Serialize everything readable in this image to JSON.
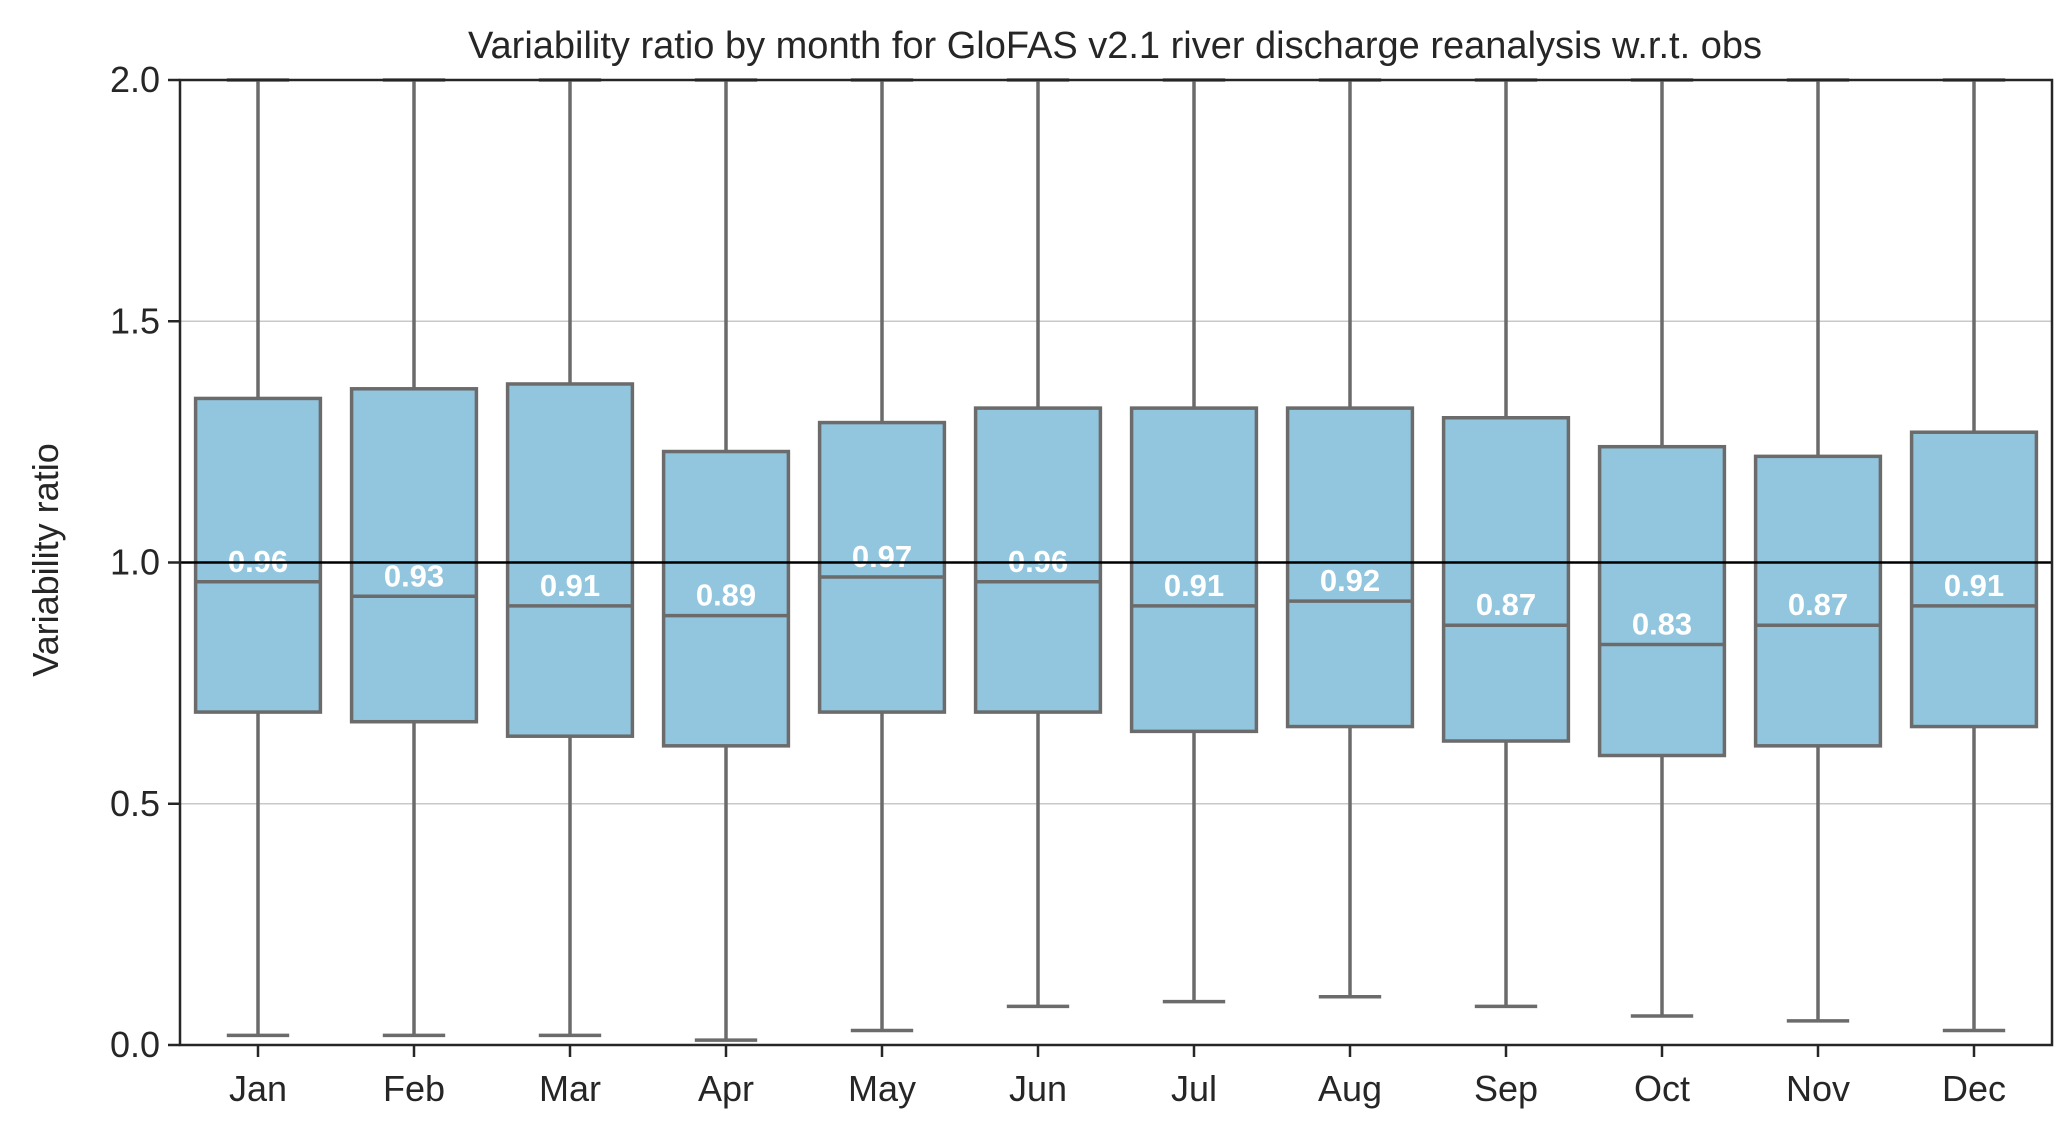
{
  "chart_data": {
    "type": "box",
    "title": "Variability ratio by month for GloFAS v2.1 river discharge reanalysis w.r.t. obs",
    "xlabel": "",
    "ylabel": "Variability ratio",
    "ylim": [
      0.0,
      2.0
    ],
    "yticks": [
      0.0,
      0.5,
      1.0,
      1.5,
      2.0
    ],
    "ytick_labels": [
      "0.0",
      "0.5",
      "1.0",
      "1.5",
      "2.0"
    ],
    "grid": "horizontal",
    "reference_line": 1.0,
    "categories": [
      "Jan",
      "Feb",
      "Mar",
      "Apr",
      "May",
      "Jun",
      "Jul",
      "Aug",
      "Sep",
      "Oct",
      "Nov",
      "Dec"
    ],
    "boxes": [
      {
        "q1": 0.69,
        "median": 0.96,
        "q3": 1.34,
        "whisker_low": 0.02,
        "whisker_high": 2.0,
        "label": "0.96"
      },
      {
        "q1": 0.67,
        "median": 0.93,
        "q3": 1.36,
        "whisker_low": 0.02,
        "whisker_high": 2.0,
        "label": "0.93"
      },
      {
        "q1": 0.64,
        "median": 0.91,
        "q3": 1.37,
        "whisker_low": 0.02,
        "whisker_high": 2.0,
        "label": "0.91"
      },
      {
        "q1": 0.62,
        "median": 0.89,
        "q3": 1.23,
        "whisker_low": 0.01,
        "whisker_high": 2.0,
        "label": "0.89"
      },
      {
        "q1": 0.69,
        "median": 0.97,
        "q3": 1.29,
        "whisker_low": 0.03,
        "whisker_high": 2.0,
        "label": "0.97"
      },
      {
        "q1": 0.69,
        "median": 0.96,
        "q3": 1.32,
        "whisker_low": 0.08,
        "whisker_high": 2.0,
        "label": "0.96"
      },
      {
        "q1": 0.65,
        "median": 0.91,
        "q3": 1.32,
        "whisker_low": 0.09,
        "whisker_high": 2.0,
        "label": "0.91"
      },
      {
        "q1": 0.66,
        "median": 0.92,
        "q3": 1.32,
        "whisker_low": 0.1,
        "whisker_high": 2.0,
        "label": "0.92"
      },
      {
        "q1": 0.63,
        "median": 0.87,
        "q3": 1.3,
        "whisker_low": 0.08,
        "whisker_high": 2.0,
        "label": "0.87"
      },
      {
        "q1": 0.6,
        "median": 0.83,
        "q3": 1.24,
        "whisker_low": 0.06,
        "whisker_high": 2.0,
        "label": "0.83"
      },
      {
        "q1": 0.62,
        "median": 0.87,
        "q3": 1.22,
        "whisker_low": 0.05,
        "whisker_high": 2.0,
        "label": "0.87"
      },
      {
        "q1": 0.66,
        "median": 0.91,
        "q3": 1.27,
        "whisker_low": 0.03,
        "whisker_high": 2.0,
        "label": "0.91"
      }
    ],
    "colors": {
      "box_fill": "#92c6df",
      "box_edge": "#6b6b6b",
      "grid": "#c8c8c8",
      "reference_line": "#000000",
      "axes": "#262626",
      "median_label": "#ffffff"
    }
  }
}
